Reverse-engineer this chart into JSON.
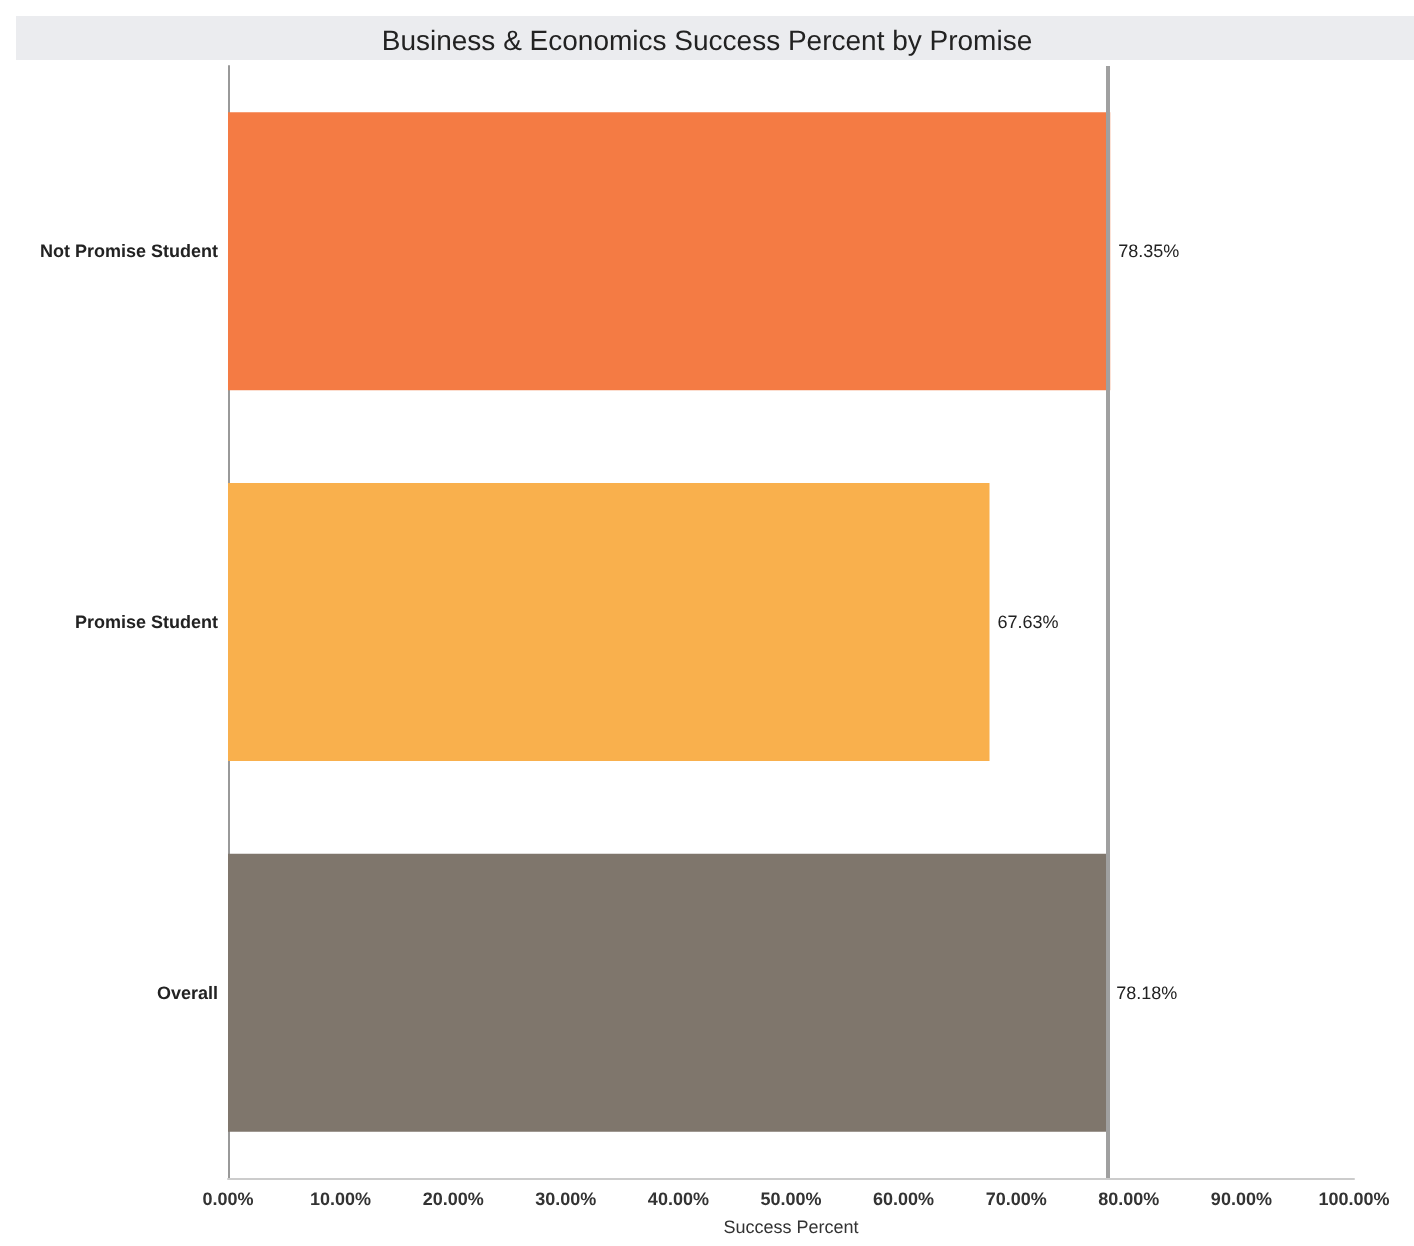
{
  "chart_data": {
    "type": "bar",
    "orientation": "horizontal",
    "title": "Business & Economics Success Percent by Promise",
    "xlabel": "Success Percent",
    "categories": [
      "Not Promise Student",
      "Promise Student",
      "Overall"
    ],
    "values": [
      78.35,
      67.63,
      78.18
    ],
    "colors": [
      "#f47b44",
      "#f9b04d",
      "#7f766c"
    ],
    "value_labels": [
      "78.35%",
      "67.63%",
      "78.18%"
    ],
    "xlim": [
      0,
      100
    ],
    "xticks": [
      {
        "value": 0,
        "label": "0.00%"
      },
      {
        "value": 10,
        "label": "10.00%"
      },
      {
        "value": 20,
        "label": "20.00%"
      },
      {
        "value": 30,
        "label": "30.00%"
      },
      {
        "value": 40,
        "label": "40.00%"
      },
      {
        "value": 50,
        "label": "50.00%"
      },
      {
        "value": 60,
        "label": "60.00%"
      },
      {
        "value": 70,
        "label": "70.00%"
      },
      {
        "value": 80,
        "label": "80.00%"
      },
      {
        "value": 90,
        "label": "90.00%"
      },
      {
        "value": 100,
        "label": "100.00%"
      }
    ],
    "ref_lines": [
      {
        "axis": "x",
        "value": 78.18,
        "color": "#a0a0a0"
      }
    ],
    "grid": false
  }
}
